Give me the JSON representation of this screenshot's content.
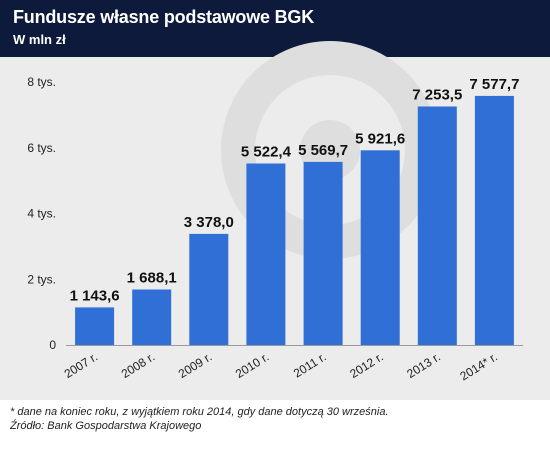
{
  "header": {
    "title": "Fundusze własne podstawowe BGK",
    "subtitle": "W mln zł"
  },
  "footer": {
    "note": "* dane na koniec roku, z wyjątkiem roku 2014, gdy dane dotyczą 30 września.",
    "source": "Źródło: Bank Gospodarstwa Krajowego"
  },
  "colors": {
    "header_bg": "#0e1a3c",
    "bar": "#2f6fd6",
    "plot_bg": "#ececec",
    "watermark": "#dedede"
  },
  "watermark_icon": "brand-logo-watermark",
  "chart_data": {
    "type": "bar",
    "title": "Fundusze własne podstawowe BGK",
    "subtitle": "W mln zł",
    "categories": [
      "2007 r.",
      "2008 r.",
      "2009 r.",
      "2010 r.",
      "2011 r.",
      "2012 r.",
      "2013 r.",
      "2014* r."
    ],
    "values": [
      1143.6,
      1688.1,
      3378.0,
      5522.4,
      5569.7,
      5921.6,
      7253.5,
      7577.7
    ],
    "data_labels": [
      "1 143,6",
      "1 688,1",
      "3 378,0",
      "5 522,4",
      "5 569,7",
      "5 921,6",
      "7 253,5",
      "7 577,7"
    ],
    "yticks": [
      0,
      2000,
      4000,
      6000,
      8000
    ],
    "ytick_labels": [
      "0",
      "2 tys.",
      "4 tys.",
      "6 tys.",
      "8 tys."
    ],
    "ylim": [
      0,
      8000
    ],
    "xlabel": "",
    "ylabel": "",
    "grid": false,
    "legend": "none"
  }
}
